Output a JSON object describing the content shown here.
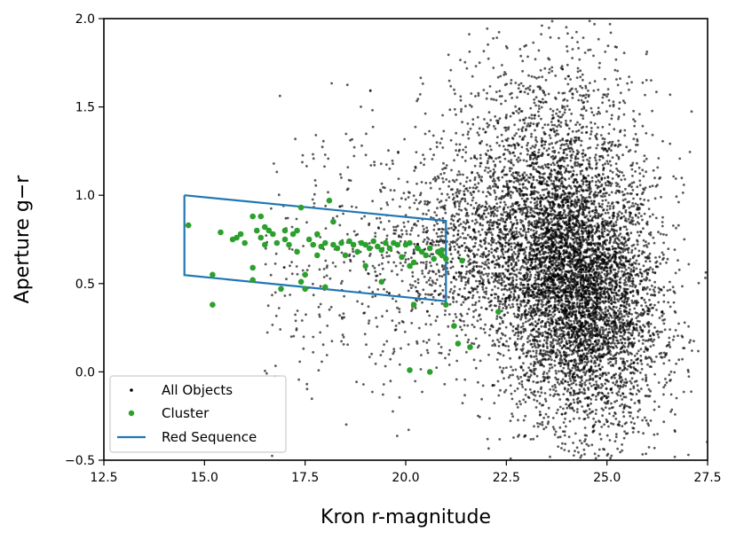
{
  "chart_data": {
    "type": "scatter",
    "title": "",
    "xlabel": "Kron r-magnitude",
    "ylabel": "Aperture g−r",
    "xlim": [
      12.5,
      27.5
    ],
    "ylim": [
      -0.5,
      2.0
    ],
    "xticks": [
      "12.5",
      "15.0",
      "17.5",
      "20.0",
      "22.5",
      "25.0",
      "27.5"
    ],
    "yticks": [
      "−0.5",
      "0.0",
      "0.5",
      "1.0",
      "1.5",
      "2.0"
    ],
    "grid": false,
    "legend_position": "lower-left",
    "legend": {
      "all_objects": "All Objects",
      "cluster": "Cluster",
      "red_sequence": "Red Sequence"
    },
    "colors": {
      "all_objects": "#000000",
      "cluster": "#2ca02c",
      "red_sequence": "#1f77b4"
    },
    "red_sequence_polygon": [
      [
        14.5,
        1.0
      ],
      [
        21.0,
        0.855
      ],
      [
        21.0,
        0.4
      ],
      [
        14.5,
        0.548
      ],
      [
        14.5,
        1.0
      ]
    ],
    "cluster_points": [
      [
        14.6,
        0.83
      ],
      [
        15.2,
        0.55
      ],
      [
        15.2,
        0.38
      ],
      [
        15.4,
        0.79
      ],
      [
        15.7,
        0.75
      ],
      [
        15.8,
        0.76
      ],
      [
        15.9,
        0.78
      ],
      [
        16.0,
        0.73
      ],
      [
        16.2,
        0.88
      ],
      [
        16.2,
        0.59
      ],
      [
        16.2,
        0.52
      ],
      [
        16.3,
        0.8
      ],
      [
        16.4,
        0.88
      ],
      [
        16.4,
        0.76
      ],
      [
        16.5,
        0.82
      ],
      [
        16.5,
        0.72
      ],
      [
        16.6,
        0.8
      ],
      [
        16.7,
        0.78
      ],
      [
        16.8,
        0.73
      ],
      [
        16.9,
        0.47
      ],
      [
        17.0,
        0.8
      ],
      [
        17.0,
        0.75
      ],
      [
        17.1,
        0.72
      ],
      [
        17.2,
        0.78
      ],
      [
        17.3,
        0.8
      ],
      [
        17.3,
        0.68
      ],
      [
        17.4,
        0.51
      ],
      [
        17.4,
        0.93
      ],
      [
        17.5,
        0.55
      ],
      [
        17.5,
        0.47
      ],
      [
        17.6,
        0.75
      ],
      [
        17.7,
        0.72
      ],
      [
        17.8,
        0.78
      ],
      [
        17.8,
        0.66
      ],
      [
        17.9,
        0.71
      ],
      [
        18.0,
        0.73
      ],
      [
        18.0,
        0.48
      ],
      [
        18.1,
        0.97
      ],
      [
        18.2,
        0.72
      ],
      [
        18.2,
        0.85
      ],
      [
        18.3,
        0.7
      ],
      [
        18.4,
        0.73
      ],
      [
        18.5,
        0.66
      ],
      [
        18.6,
        0.74
      ],
      [
        18.7,
        0.72
      ],
      [
        18.8,
        0.68
      ],
      [
        18.9,
        0.73
      ],
      [
        19.0,
        0.72
      ],
      [
        19.0,
        0.6
      ],
      [
        19.1,
        0.7
      ],
      [
        19.2,
        0.74
      ],
      [
        19.3,
        0.71
      ],
      [
        19.4,
        0.51
      ],
      [
        19.4,
        0.69
      ],
      [
        19.5,
        0.73
      ],
      [
        19.6,
        0.7
      ],
      [
        19.7,
        0.73
      ],
      [
        19.8,
        0.72
      ],
      [
        19.9,
        0.65
      ],
      [
        20.0,
        0.72
      ],
      [
        20.1,
        0.73
      ],
      [
        20.1,
        0.6
      ],
      [
        20.2,
        0.38
      ],
      [
        20.2,
        0.62
      ],
      [
        20.3,
        0.7
      ],
      [
        20.4,
        0.68
      ],
      [
        20.5,
        0.66
      ],
      [
        20.6,
        0.7
      ],
      [
        20.7,
        0.64
      ],
      [
        20.8,
        0.68
      ],
      [
        20.9,
        0.66
      ],
      [
        20.9,
        0.69
      ],
      [
        21.0,
        0.64
      ],
      [
        21.0,
        0.38
      ],
      [
        21.2,
        0.26
      ],
      [
        21.3,
        0.16
      ],
      [
        21.4,
        0.63
      ],
      [
        21.6,
        0.14
      ],
      [
        22.3,
        0.34
      ],
      [
        20.1,
        0.01
      ],
      [
        20.6,
        0.0
      ]
    ]
  }
}
